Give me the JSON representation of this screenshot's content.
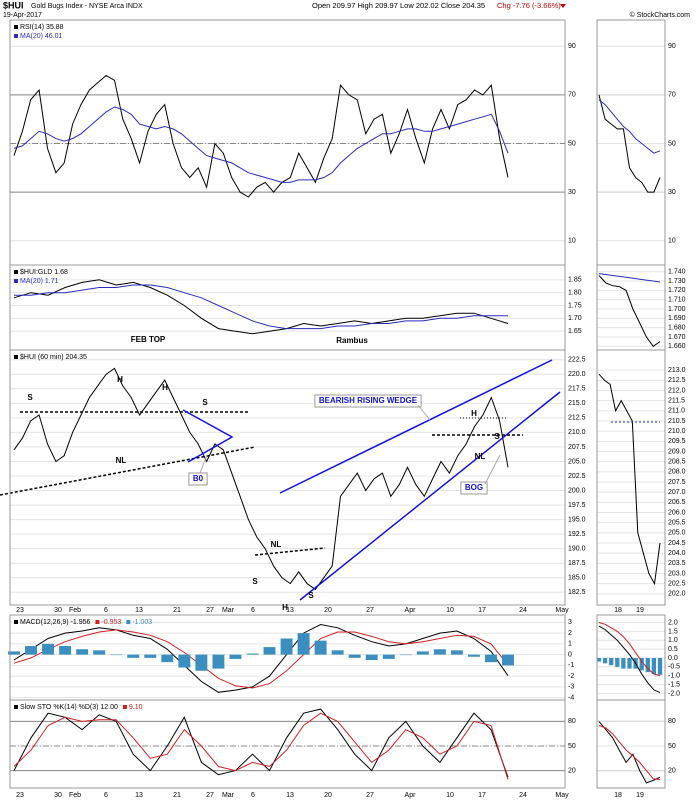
{
  "header": {
    "symbol": "$HUI",
    "name": "Gold Bugs Index - NYSE Arca INDX",
    "date": "19-Apr-2017",
    "quote": "Open 209.97 High 209.97 Low 202.02 Close 204.35",
    "change": "Chg -7.76 (-3.66%)",
    "credit": "© StockCharts.com"
  },
  "time_axis": {
    "labels": [
      "23",
      "30",
      "Feb",
      "6",
      "13",
      "21",
      "27",
      "Mar",
      "6",
      "13",
      "20",
      "27",
      "Apr",
      "10",
      "17",
      "24",
      "May"
    ]
  },
  "intraday_axis": {
    "labels": [
      "18",
      "19"
    ]
  },
  "chart_data": [
    {
      "type": "line",
      "ylim": [
        0,
        100
      ],
      "yticks": [
        90,
        70,
        50,
        30,
        10
      ],
      "reference_lines": [
        {
          "value": 70,
          "style": "solid"
        },
        {
          "value": 50,
          "style": "dashed"
        },
        {
          "value": 30,
          "style": "solid"
        }
      ],
      "series": [
        {
          "name": "RSI(14) 35.88",
          "color": "#000000",
          "values": [
            45,
            55,
            68,
            72,
            48,
            38,
            42,
            58,
            66,
            72,
            75,
            78,
            76,
            60,
            52,
            42,
            55,
            62,
            66,
            50,
            40,
            36,
            40,
            32,
            50,
            46,
            36,
            30,
            28,
            32,
            34,
            30,
            34,
            36,
            46,
            40,
            34,
            44,
            52,
            74,
            70,
            68,
            54,
            60,
            62,
            46,
            54,
            64,
            52,
            42,
            56,
            64,
            56,
            66,
            68,
            72,
            70,
            74,
            52,
            36
          ]
        },
        {
          "name": "MA(20) 46.01",
          "color": "#2b2bbf",
          "values": [
            48,
            49,
            52,
            55,
            54,
            52,
            51,
            52,
            54,
            57,
            60,
            63,
            65,
            64,
            62,
            58,
            57,
            56,
            57,
            56,
            54,
            51,
            48,
            45,
            44,
            43,
            42,
            40,
            38,
            37,
            36,
            35,
            34,
            34,
            35,
            35,
            35,
            36,
            38,
            42,
            45,
            48,
            50,
            52,
            54,
            54,
            55,
            56,
            56,
            55,
            55,
            56,
            57,
            58,
            59,
            60,
            61,
            62,
            55,
            46
          ]
        }
      ],
      "intraday": {
        "ylim": [
          0,
          100
        ],
        "yticks": [
          90,
          70,
          50,
          30,
          10
        ],
        "series": [
          {
            "color": "#000000",
            "values": [
              70,
              60,
              58,
              56,
              56,
              40,
              36,
              34,
              30,
              30,
              36
            ]
          },
          {
            "color": "#2b2bbf",
            "values": [
              68,
              66,
              63,
              60,
              57,
              55,
              52,
              50,
              48,
              46,
              47
            ]
          }
        ]
      }
    },
    {
      "type": "line",
      "ylim": [
        1.6,
        1.9
      ],
      "yticks": [
        1.85,
        {
          "value": 1.8,
          "label": "1.80"
        },
        1.75,
        {
          "value": 1.7,
          "label": "1.70"
        },
        1.65
      ],
      "series": [
        {
          "name": "$HUI:GLD 1.68",
          "color": "#000000",
          "values": [
            1.78,
            1.8,
            1.79,
            1.82,
            1.84,
            1.85,
            1.83,
            1.84,
            1.82,
            1.79,
            1.75,
            1.7,
            1.66,
            1.65,
            1.64,
            1.65,
            1.66,
            1.68,
            1.67,
            1.68,
            1.69,
            1.68,
            1.69,
            1.7,
            1.7,
            1.71,
            1.72,
            1.72,
            1.7,
            1.68
          ]
        },
        {
          "name": "MA(20) 1.71",
          "color": "#2b2bbf",
          "values": [
            1.79,
            1.79,
            1.8,
            1.8,
            1.81,
            1.82,
            1.82,
            1.83,
            1.83,
            1.82,
            1.8,
            1.78,
            1.75,
            1.72,
            1.69,
            1.67,
            1.66,
            1.66,
            1.66,
            1.67,
            1.67,
            1.68,
            1.68,
            1.69,
            1.69,
            1.7,
            1.7,
            1.71,
            1.71,
            1.71
          ]
        }
      ],
      "intraday": {
        "ylim": [
          1.656,
          1.744
        ],
        "yticks": [
          {
            "value": 1.74,
            "label": "1.740"
          },
          {
            "value": 1.73,
            "label": "1.730"
          },
          {
            "value": 1.72,
            "label": "1.720"
          },
          {
            "value": 1.71,
            "label": "1.710"
          },
          {
            "value": 1.7,
            "label": "1.700"
          },
          {
            "value": 1.69,
            "label": "1.690"
          },
          {
            "value": 1.68,
            "label": "1.680"
          },
          {
            "value": 1.67,
            "label": "1.670"
          },
          {
            "value": 1.66,
            "label": "1.660"
          }
        ],
        "series": [
          {
            "color": "#000000",
            "values": [
              1.736,
              1.728,
              1.725,
              1.724,
              1.72,
              1.7,
              1.685,
              1.67,
              1.66,
              1.665
            ]
          },
          {
            "color": "#2b2bbf",
            "values": [
              1.738,
              1.737,
              1.736,
              1.735,
              1.734,
              1.733,
              1.732,
              1.731,
              1.73,
              1.729
            ]
          }
        ]
      }
    },
    {
      "type": "line",
      "ylim": [
        181,
        224
      ],
      "yticks": [
        222.5,
        {
          "value": 220,
          "label": "220.0"
        },
        217.5,
        {
          "value": 215,
          "label": "215.0"
        },
        212.5,
        {
          "value": 210,
          "label": "210.0"
        },
        207.5,
        {
          "value": 205,
          "label": "205.0"
        },
        202.5,
        {
          "value": 200,
          "label": "200.0"
        },
        197.5,
        {
          "value": 195,
          "label": "195.0"
        },
        192.5,
        {
          "value": 190,
          "label": "190.0"
        },
        187.5,
        {
          "value": 185,
          "label": "185.0"
        },
        182.5
      ],
      "annotations": [
        "FEB TOP",
        "H",
        "H",
        "S",
        "S",
        "NL",
        "B0",
        "Rambus",
        "BEARISH RISING WEDGE",
        "H",
        "S",
        "NL",
        "BOG",
        "NL",
        "S",
        "H",
        "S"
      ],
      "series": [
        {
          "name": "$HUI (60 min) 204.35",
          "color": "#000000",
          "values": [
            207,
            209,
            212,
            213,
            208,
            205,
            206,
            210,
            213,
            216,
            218,
            220,
            221,
            218,
            216,
            213,
            215,
            217,
            219,
            216,
            213,
            210,
            208,
            205,
            208,
            207,
            203,
            199,
            195,
            192,
            190,
            187,
            185,
            184,
            186,
            184,
            183,
            185,
            187,
            199,
            201,
            203,
            200,
            202,
            203,
            199,
            201,
            204,
            201,
            199,
            202,
            205,
            203,
            206,
            208,
            211,
            213,
            216,
            212,
            204
          ]
        }
      ],
      "intraday": {
        "ylim": [
          201.5,
          213.5
        ],
        "yticks": [
          {
            "value": 213,
            "label": "213.0"
          },
          212.5,
          {
            "value": 212,
            "label": "212.0"
          },
          211.5,
          {
            "value": 211,
            "label": "211.0"
          },
          210.5,
          {
            "value": 210,
            "label": "210.0"
          },
          209.5,
          {
            "value": 209,
            "label": "209.0"
          },
          208.5,
          {
            "value": 208,
            "label": "208.0"
          },
          207.5,
          {
            "value": 207,
            "label": "207.0"
          },
          206.5,
          {
            "value": 206,
            "label": "206.0"
          },
          205.5,
          {
            "value": 205,
            "label": "205.0"
          },
          204.5,
          {
            "value": 204,
            "label": "204.0"
          },
          203.5,
          {
            "value": 203,
            "label": "203.0"
          },
          202.5,
          {
            "value": 202,
            "label": "202.0"
          }
        ],
        "series": [
          {
            "color": "#000000",
            "values": [
              212.8,
              212.5,
              212.3,
              211,
              211.5,
              211,
              210.5,
              205,
              204,
              203,
              202.5,
              204.5
            ]
          }
        ]
      }
    },
    {
      "type": "line",
      "ylim": [
        -4.5,
        3.5
      ],
      "yticks": [
        3,
        2,
        1,
        0,
        -1,
        -2,
        -3,
        -4
      ],
      "series": [
        {
          "name": "MACD(12,26,9) -1.956",
          "color": "#000000",
          "values": [
            -0.5,
            0.5,
            1.5,
            2,
            2.2,
            2.5,
            2.3,
            1.8,
            1.5,
            0.5,
            -1,
            -2.5,
            -3.5,
            -3.3,
            -3,
            -2,
            0,
            2,
            2.8,
            2.5,
            1.8,
            1.2,
            0.8,
            1,
            1.5,
            2,
            2.2,
            1.5,
            0.3,
            -1.956
          ]
        },
        {
          "name": "-0.953",
          "color": "#d02020",
          "values": [
            -0.8,
            -0.3,
            0.5,
            1.2,
            1.7,
            2.1,
            2.3,
            2.1,
            1.8,
            1.2,
            0.2,
            -1,
            -2.2,
            -2.9,
            -3.1,
            -2.7,
            -1.5,
            0,
            1.5,
            2.1,
            2.1,
            1.7,
            1.2,
            1,
            1.2,
            1.5,
            1.8,
            1.7,
            1,
            -0.953
          ]
        },
        {
          "name": "-1.003",
          "color": "#3a8fc0",
          "style": "histogram",
          "values": [
            0.3,
            0.8,
            1,
            0.8,
            0.5,
            0.4,
            0,
            -0.3,
            -0.3,
            -0.7,
            -1.2,
            -1.5,
            -1.3,
            -0.4,
            0.1,
            0.7,
            1.5,
            2,
            1.3,
            0.4,
            -0.3,
            -0.5,
            -0.4,
            0,
            0.3,
            0.5,
            0.4,
            -0.2,
            -0.7,
            -1.003
          ]
        }
      ],
      "intraday": {
        "ylim": [
          -2.2,
          2.2
        ],
        "yticks": [
          {
            "value": 2,
            "label": "2.0"
          },
          1.5,
          {
            "value": 1,
            "label": "1.0"
          },
          0.5,
          {
            "value": 0,
            "label": "0.0"
          },
          -0.5,
          {
            "value": -1,
            "label": "-1.0"
          },
          -1.5,
          {
            "value": -2,
            "label": "-2.0"
          }
        ],
        "series": [
          {
            "color": "#3a8fc0",
            "style": "histogram",
            "values": [
              -0.2,
              -0.3,
              -0.4,
              -0.5,
              -0.6,
              -0.6,
              -0.6,
              -0.7,
              -0.8,
              -0.9,
              -0.95
            ]
          },
          {
            "color": "#000000",
            "values": [
              1.8,
              1.6,
              1.3,
              1,
              0.6,
              0.2,
              -0.3,
              -0.9,
              -1.4,
              -1.8,
              -1.95
            ]
          },
          {
            "color": "#d02020",
            "values": [
              2,
              1.9,
              1.7,
              1.5,
              1.2,
              0.8,
              0.3,
              -0.2,
              -0.6,
              -0.9,
              -1
            ]
          }
        ]
      }
    },
    {
      "type": "line",
      "ylim": [
        0,
        100
      ],
      "yticks": [
        80,
        50,
        20
      ],
      "reference_lines": [
        {
          "value": 80,
          "style": "solid"
        },
        {
          "value": 50,
          "style": "dashed"
        },
        {
          "value": 20,
          "style": "solid"
        }
      ],
      "series": [
        {
          "name": "Slow STO %K(14) %D(3) 12.00",
          "color": "#000000",
          "values": [
            20,
            60,
            90,
            85,
            70,
            88,
            80,
            40,
            20,
            50,
            85,
            30,
            15,
            20,
            40,
            20,
            60,
            90,
            95,
            70,
            40,
            20,
            60,
            80,
            50,
            30,
            60,
            90,
            70,
            12
          ]
        },
        {
          "name": "9.10",
          "color": "#d02020",
          "values": [
            25,
            45,
            75,
            85,
            80,
            82,
            82,
            60,
            35,
            40,
            70,
            50,
            25,
            20,
            30,
            25,
            45,
            75,
            90,
            80,
            55,
            30,
            45,
            70,
            60,
            40,
            50,
            80,
            75,
            9.1
          ]
        }
      ],
      "intraday": {
        "ylim": [
          0,
          100
        ],
        "yticks": [
          80,
          50,
          20
        ],
        "series": [
          {
            "color": "#000000",
            "values": [
              80,
              70,
              60,
              45,
              30,
              40,
              20,
              5,
              8,
              12
            ]
          },
          {
            "color": "#d02020",
            "values": [
              75,
              72,
              65,
              55,
              45,
              38,
              30,
              20,
              10,
              9
            ]
          }
        ]
      }
    }
  ]
}
